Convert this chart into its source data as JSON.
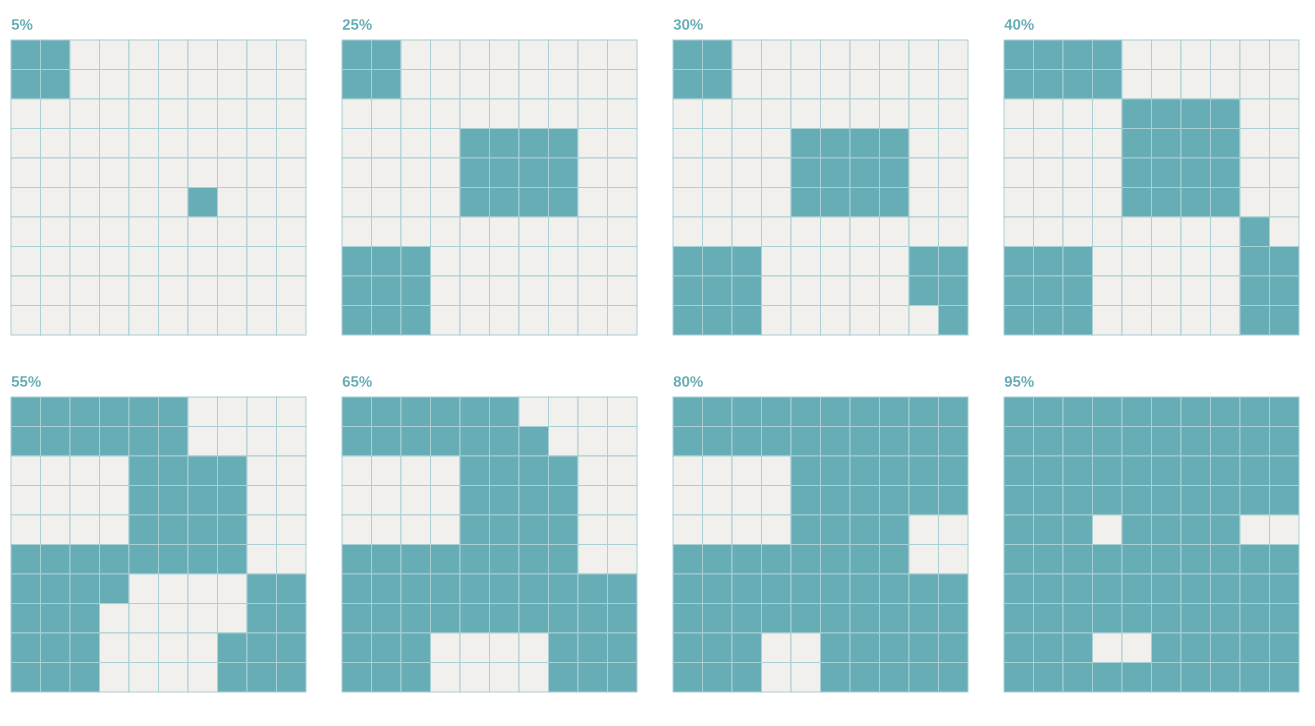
{
  "chart_data": [
    {
      "type": "other",
      "values": [
        5
      ],
      "value_labels": [
        "5%"
      ]
    },
    {
      "type": "other",
      "values": [
        25
      ],
      "value_labels": [
        "25%"
      ]
    },
    {
      "type": "other",
      "values": [
        30
      ],
      "value_labels": [
        "30%"
      ]
    },
    {
      "type": "other",
      "values": [
        40
      ],
      "value_labels": [
        "40%"
      ]
    },
    {
      "type": "other",
      "values": [
        55
      ],
      "value_labels": [
        "55%"
      ]
    },
    {
      "type": "other",
      "values": [
        65
      ],
      "value_labels": [
        "65%"
      ]
    },
    {
      "type": "other",
      "values": [
        80
      ],
      "value_labels": [
        "80%"
      ]
    },
    {
      "type": "other",
      "values": [
        95
      ],
      "value_labels": [
        "95%"
      ]
    }
  ]
}
